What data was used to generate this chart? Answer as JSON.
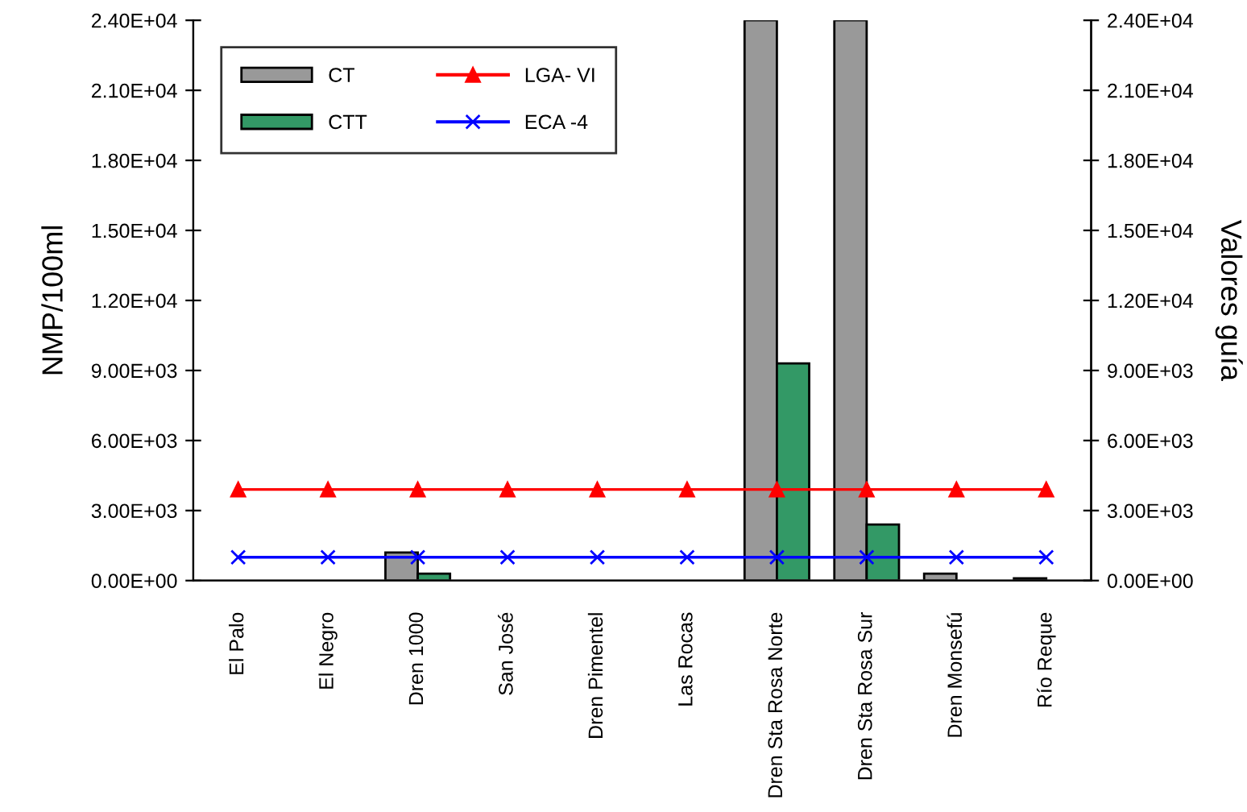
{
  "chart_data": {
    "type": "bar",
    "ylabel": "NMP/100ml",
    "y2label": "Valores guía",
    "categories": [
      "El Palo",
      "El Negro",
      "Dren 1000",
      "San José",
      "Dren Pimentel",
      "Las Rocas",
      "Dren Sta Rosa Norte",
      "Dren Sta Rosa Sur",
      "Dren Monsefú",
      "Río Reque"
    ],
    "series": [
      {
        "name": "CT",
        "color": "#999999",
        "values": [
          null,
          null,
          1200,
          null,
          null,
          null,
          24000,
          24000,
          300,
          100
        ]
      },
      {
        "name": "CTT",
        "color": "#339966",
        "values": [
          null,
          null,
          300,
          null,
          null,
          null,
          9300,
          2400,
          null,
          null
        ]
      },
      {
        "name": "LGA- VI",
        "type": "line",
        "color": "#ff0000",
        "marker": "triangle",
        "values": [
          3900,
          3900,
          3900,
          3900,
          3900,
          3900,
          3900,
          3900,
          3900,
          3900
        ]
      },
      {
        "name": "ECA -4",
        "type": "line",
        "color": "#0000ff",
        "marker": "cross",
        "values": [
          1000,
          1000,
          1000,
          1000,
          1000,
          1000,
          1000,
          1000,
          1000,
          1000
        ]
      }
    ],
    "ylim": [
      0,
      24000
    ],
    "yticks": [
      {
        "value": 0,
        "label": "0.00E+00"
      },
      {
        "value": 3000,
        "label": "3.00E+03"
      },
      {
        "value": 6000,
        "label": "6.00E+03"
      },
      {
        "value": 9000,
        "label": "9.00E+03"
      },
      {
        "value": 12000,
        "label": "1.20E+04"
      },
      {
        "value": 15000,
        "label": "1.50E+04"
      },
      {
        "value": 18000,
        "label": "1.80E+04"
      },
      {
        "value": 21000,
        "label": "2.10E+04"
      },
      {
        "value": 24000,
        "label": "2.40E+04"
      }
    ],
    "y2lim": [
      0,
      24000
    ],
    "y2ticks": [
      {
        "value": 0,
        "label": "0.00E+00"
      },
      {
        "value": 3000,
        "label": "3.00E+03"
      },
      {
        "value": 6000,
        "label": "6.00E+03"
      },
      {
        "value": 9000,
        "label": "9.00E+03"
      },
      {
        "value": 12000,
        "label": "1.20E+04"
      },
      {
        "value": 15000,
        "label": "1.50E+04"
      },
      {
        "value": 18000,
        "label": "1.80E+04"
      },
      {
        "value": 21000,
        "label": "2.10E+04"
      },
      {
        "value": 24000,
        "label": "2.40E+04"
      }
    ],
    "grid": false,
    "legend": "top left"
  }
}
